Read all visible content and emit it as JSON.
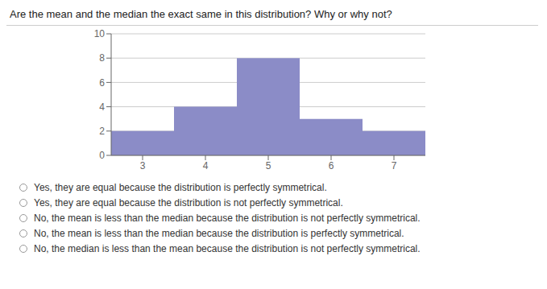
{
  "chart_data": {
    "type": "bar",
    "title": "Are the mean and the median the exact same in this distribution? Why or why not?",
    "categories": [
      3,
      4,
      5,
      6,
      7
    ],
    "values": [
      2,
      4,
      8,
      3,
      2
    ],
    "color": "#8B8CC7",
    "ylim": [
      0,
      10
    ],
    "yticks": [
      0,
      2,
      4,
      6,
      8,
      10
    ],
    "grid": true,
    "annotations": [
      "Yes, they are equal because the distribution is perfectly symmetrical.",
      "Yes, they are equal because the distribution is not perfectly symmetrical.",
      "No, the mean is less than the median because the distribution is not perfectly symmetrical.",
      "No, the mean is less than the median because the distribution is perfectly symmetrical.",
      "No, the median is less than the mean because the distribution is not perfectly symmetrical."
    ]
  }
}
